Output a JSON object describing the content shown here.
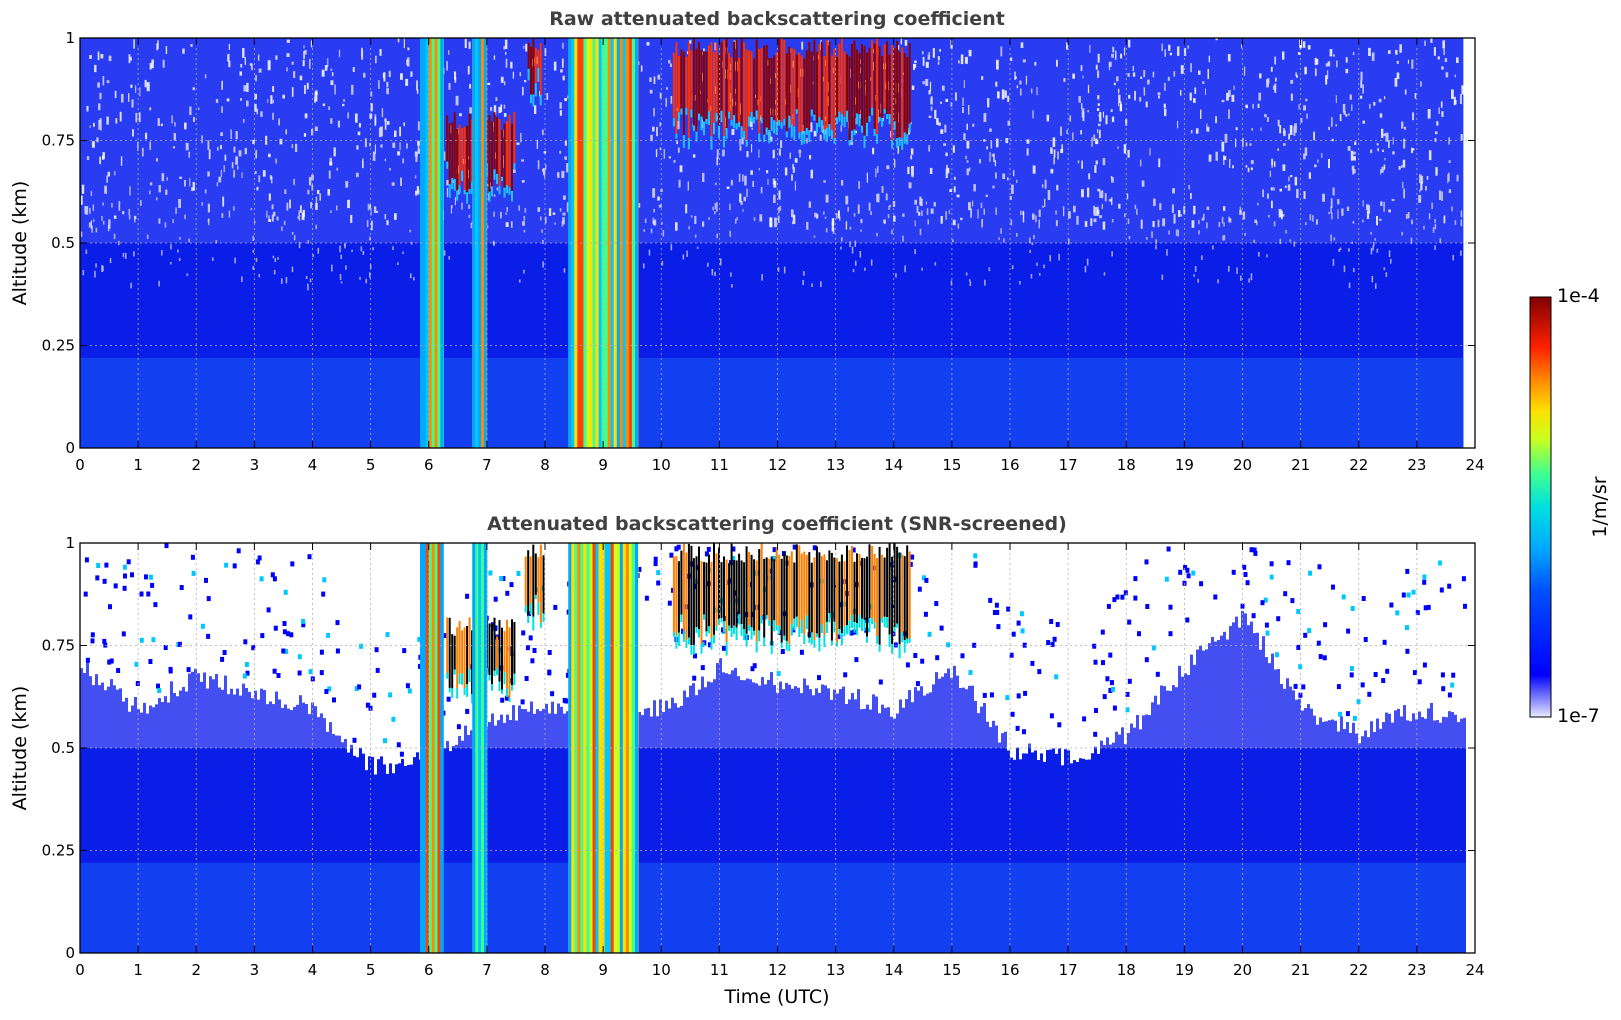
{
  "chart_data": [
    {
      "type": "heatmap",
      "title": "Raw attenuated backscattering coefficient",
      "xlabel": "",
      "ylabel": "Altitude (km)",
      "xlim": [
        0,
        24
      ],
      "ylim": [
        0,
        1
      ],
      "xticks": [
        "0",
        "1",
        "2",
        "3",
        "4",
        "5",
        "6",
        "7",
        "8",
        "9",
        "10",
        "11",
        "12",
        "13",
        "14",
        "15",
        "16",
        "17",
        "18",
        "19",
        "20",
        "21",
        "22",
        "23",
        "24"
      ],
      "yticks": [
        "0",
        "0.25",
        "0.5",
        "0.75",
        "1"
      ],
      "grid": true,
      "data_end_hour": 23.8,
      "strong_signal_bands_utc": [
        [
          5.85,
          6.25
        ],
        [
          6.75,
          7.0
        ],
        [
          8.4,
          9.6
        ]
      ],
      "cloud_features": [
        {
          "label": "aerosol/cloud",
          "start": 6.3,
          "end": 7.5,
          "alt_low": 0.62,
          "alt_high": 0.82
        },
        {
          "label": "cloud",
          "start": 7.7,
          "end": 7.95,
          "alt_low": 0.85,
          "alt_high": 1.0
        },
        {
          "label": "cloud",
          "start": 10.2,
          "end": 14.3,
          "alt_low": 0.75,
          "alt_high": 1.0
        }
      ],
      "mode": "raw"
    },
    {
      "type": "heatmap",
      "title": "Attenuated backscattering coefficient (SNR-screened)",
      "xlabel": "Time (UTC)",
      "ylabel": "Altitude (km)",
      "xlim": [
        0,
        24
      ],
      "ylim": [
        0,
        1
      ],
      "xticks": [
        "0",
        "1",
        "2",
        "3",
        "4",
        "5",
        "6",
        "7",
        "8",
        "9",
        "10",
        "11",
        "12",
        "13",
        "14",
        "15",
        "16",
        "17",
        "18",
        "19",
        "20",
        "21",
        "22",
        "23",
        "24"
      ],
      "yticks": [
        "0",
        "0.25",
        "0.5",
        "0.75",
        "1"
      ],
      "grid": true,
      "data_end_hour": 23.8,
      "strong_signal_bands_utc": [
        [
          5.85,
          6.25
        ],
        [
          6.75,
          7.0
        ],
        [
          8.4,
          9.6
        ]
      ],
      "boundary_layer_top_km": [
        [
          0.0,
          0.72
        ],
        [
          1.0,
          0.62
        ],
        [
          2.0,
          0.7
        ],
        [
          3.0,
          0.66
        ],
        [
          4.0,
          0.62
        ],
        [
          5.0,
          0.48
        ],
        [
          6.0,
          0.5
        ],
        [
          7.0,
          0.6
        ],
        [
          8.0,
          0.62
        ],
        [
          10.0,
          0.62
        ],
        [
          11.0,
          0.72
        ],
        [
          12.0,
          0.68
        ],
        [
          13.0,
          0.66
        ],
        [
          14.0,
          0.62
        ],
        [
          15.0,
          0.72
        ],
        [
          16.0,
          0.52
        ],
        [
          17.0,
          0.5
        ],
        [
          18.0,
          0.56
        ],
        [
          19.0,
          0.72
        ],
        [
          20.0,
          0.85
        ],
        [
          21.0,
          0.62
        ],
        [
          22.0,
          0.56
        ],
        [
          23.0,
          0.62
        ],
        [
          23.8,
          0.6
        ]
      ],
      "mode": "screened"
    }
  ],
  "colorbar": {
    "min_label": "1e-7",
    "max_label": "1e-4",
    "unit": "1/m/sr",
    "colormap": "jet",
    "scale": "log"
  },
  "colors": {
    "title": "#404040",
    "grid": "#b0b0b0",
    "cloud_dark_red": "#8b0000",
    "cloud_black": "#000000"
  }
}
